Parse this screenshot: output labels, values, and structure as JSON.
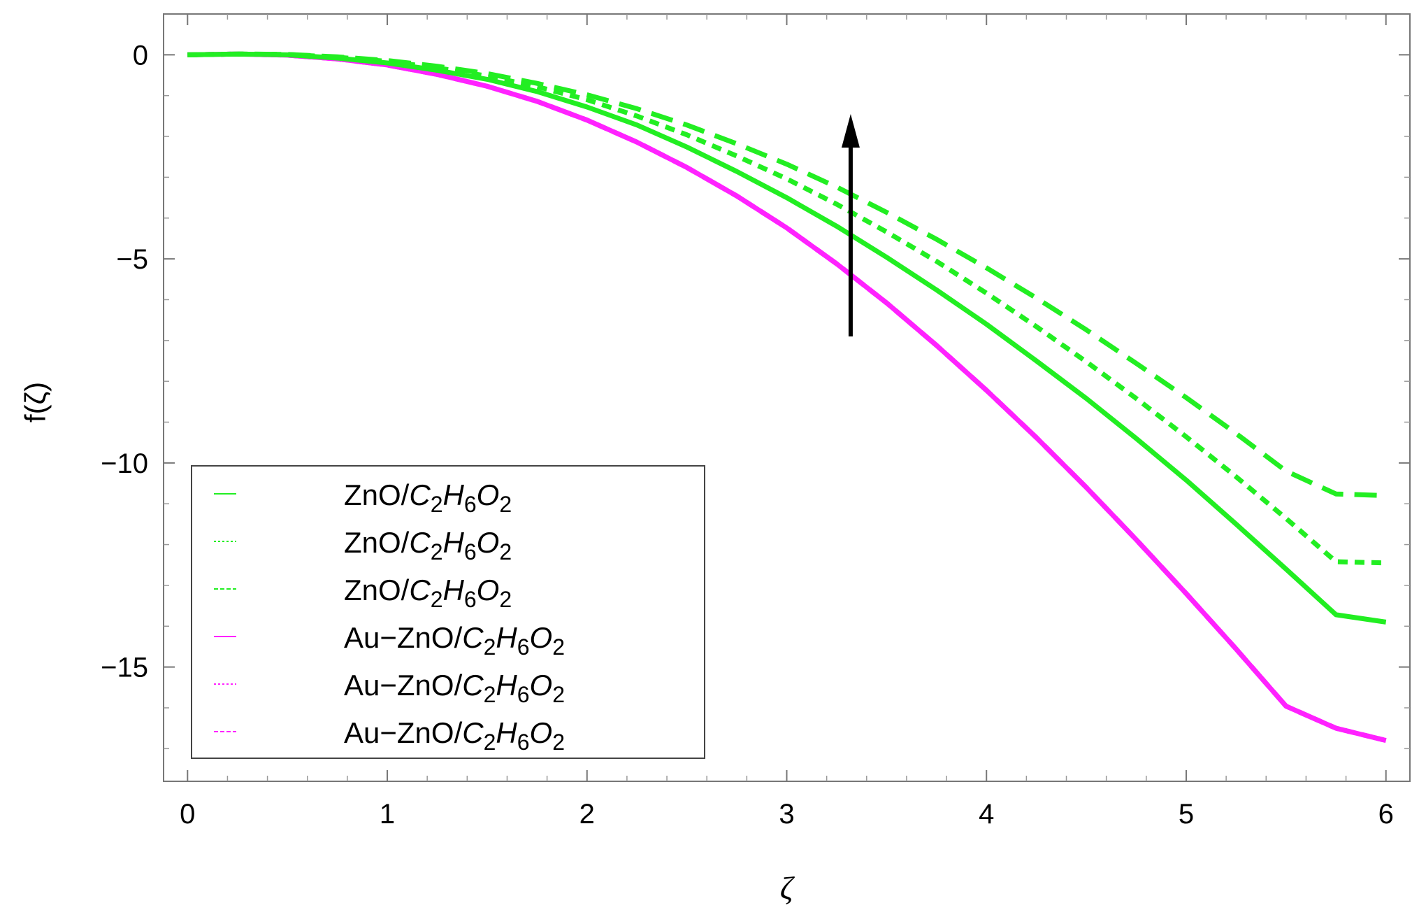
{
  "chart_data": {
    "type": "line",
    "xlabel": "ζ",
    "ylabel": "f(ζ)",
    "xlim": [
      -0.12,
      6.12
    ],
    "ylim": [
      -17.8,
      1.0
    ],
    "xticks": [
      {
        "value": 0,
        "label": "0"
      },
      {
        "value": 1,
        "label": "1"
      },
      {
        "value": 2,
        "label": "2"
      },
      {
        "value": 3,
        "label": "3"
      },
      {
        "value": 4,
        "label": "4"
      },
      {
        "value": 5,
        "label": "5"
      },
      {
        "value": 6,
        "label": "6"
      }
    ],
    "yticks": [
      {
        "value": 0,
        "label": "0"
      },
      {
        "value": -5,
        "label": "−5"
      },
      {
        "value": -10,
        "label": "−10"
      },
      {
        "value": -15,
        "label": "−15"
      }
    ],
    "x": [
      0,
      0.25,
      0.5,
      0.75,
      1.0,
      1.25,
      1.5,
      1.75,
      2.0,
      2.25,
      2.5,
      2.75,
      3.0,
      3.25,
      3.5,
      3.75,
      4.0,
      4.25,
      4.5,
      4.75,
      5.0,
      5.25,
      5.5,
      5.75,
      6.0
    ],
    "legend_position": "bottom-left",
    "series": [
      {
        "color": "#22ee22",
        "style": "solid",
        "legend_base": "ZnO/",
        "legend_prefix": "",
        "values": [
          0,
          0.02,
          0.0,
          -0.08,
          -0.2,
          -0.38,
          -0.6,
          -0.9,
          -1.28,
          -1.72,
          -2.26,
          -2.86,
          -3.5,
          -4.2,
          -4.96,
          -5.76,
          -6.6,
          -7.5,
          -8.42,
          -9.4,
          -10.42,
          -11.5,
          -12.6,
          -13.72,
          -13.9
        ]
      },
      {
        "color": "#22ee22",
        "style": "dotted",
        "legend_base": "ZnO/",
        "legend_prefix": "",
        "values": [
          0,
          0.02,
          0.01,
          -0.06,
          -0.16,
          -0.32,
          -0.52,
          -0.78,
          -1.1,
          -1.5,
          -1.96,
          -2.48,
          -3.04,
          -3.66,
          -4.34,
          -5.06,
          -5.84,
          -6.66,
          -7.52,
          -8.42,
          -9.36,
          -10.34,
          -11.36,
          -12.42,
          -12.45
        ]
      },
      {
        "color": "#22ee22",
        "style": "dashed",
        "legend_base": "ZnO/",
        "legend_prefix": "",
        "values": [
          0,
          0.02,
          0.01,
          -0.05,
          -0.14,
          -0.28,
          -0.46,
          -0.7,
          -0.98,
          -1.32,
          -1.72,
          -2.18,
          -2.68,
          -3.24,
          -3.86,
          -4.52,
          -5.22,
          -5.96,
          -6.74,
          -7.56,
          -8.4,
          -9.28,
          -10.2,
          -10.76,
          -10.8
        ]
      },
      {
        "color": "#ff22ff",
        "style": "solid",
        "legend_base": "ZnO/",
        "legend_prefix": "Au−",
        "values": [
          0,
          0.02,
          -0.01,
          -0.1,
          -0.25,
          -0.48,
          -0.77,
          -1.14,
          -1.6,
          -2.14,
          -2.76,
          -3.46,
          -4.24,
          -5.12,
          -6.08,
          -7.12,
          -8.22,
          -9.38,
          -10.6,
          -11.88,
          -13.2,
          -14.56,
          -15.96,
          -16.5,
          -16.8
        ]
      },
      {
        "color": "#ff22ff",
        "style": "dotted",
        "legend_base": "ZnO/",
        "legend_prefix": "Au−",
        "values": [
          0,
          0.02,
          -0.01,
          -0.1,
          -0.25,
          -0.48,
          -0.77,
          -1.14,
          -1.6,
          -2.14,
          -2.76,
          -3.46,
          -4.24,
          -5.12,
          -6.08,
          -7.12,
          -8.22,
          -9.38,
          -10.6,
          -11.88,
          -13.2,
          -14.56,
          -15.96,
          -16.5,
          -16.8
        ]
      },
      {
        "color": "#ff22ff",
        "style": "dashed",
        "legend_base": "ZnO/",
        "legend_prefix": "Au−",
        "values": [
          0,
          0.02,
          -0.01,
          -0.1,
          -0.25,
          -0.48,
          -0.77,
          -1.14,
          -1.6,
          -2.14,
          -2.76,
          -3.46,
          -4.24,
          -5.12,
          -6.08,
          -7.12,
          -8.22,
          -9.38,
          -10.6,
          -11.88,
          -13.2,
          -14.56,
          -15.96,
          -16.5,
          -16.8
        ]
      }
    ],
    "annotations": [
      {
        "type": "arrow",
        "direction": "up",
        "x": 3.32,
        "y_from": -6.9,
        "y_to": -1.45
      }
    ]
  }
}
